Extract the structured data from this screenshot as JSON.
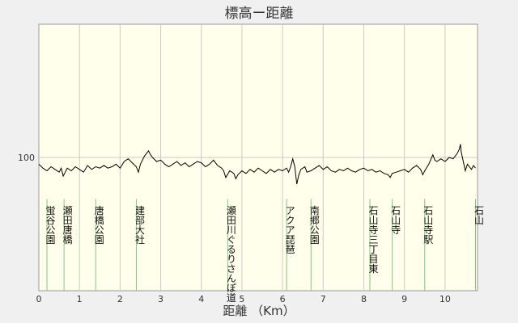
{
  "chart_data": {
    "type": "line",
    "title": "標高ー距離",
    "xlabel": "距離 （Km）",
    "ylabel": "",
    "xlim": [
      0,
      10.8
    ],
    "ylim": [
      0,
      200
    ],
    "x_ticks": [
      0,
      1,
      2,
      3,
      4,
      5,
      6,
      7,
      8,
      9,
      10
    ],
    "y_ticks": [
      100
    ],
    "grid": true,
    "series": [
      {
        "color": "#000000",
        "points": [
          [
            0.0,
            95
          ],
          [
            0.1,
            92
          ],
          [
            0.2,
            90
          ],
          [
            0.3,
            93
          ],
          [
            0.4,
            91
          ],
          [
            0.5,
            89
          ],
          [
            0.55,
            92
          ],
          [
            0.6,
            86
          ],
          [
            0.65,
            89
          ],
          [
            0.7,
            92
          ],
          [
            0.8,
            90
          ],
          [
            0.9,
            93
          ],
          [
            1.0,
            91
          ],
          [
            1.1,
            89
          ],
          [
            1.2,
            94
          ],
          [
            1.3,
            91
          ],
          [
            1.4,
            93
          ],
          [
            1.5,
            92
          ],
          [
            1.6,
            94
          ],
          [
            1.7,
            92
          ],
          [
            1.8,
            93
          ],
          [
            1.9,
            95
          ],
          [
            2.0,
            92
          ],
          [
            2.1,
            97
          ],
          [
            2.2,
            99
          ],
          [
            2.3,
            96
          ],
          [
            2.4,
            93
          ],
          [
            2.45,
            89
          ],
          [
            2.5,
            95
          ],
          [
            2.6,
            101
          ],
          [
            2.7,
            105
          ],
          [
            2.75,
            102
          ],
          [
            2.8,
            100
          ],
          [
            2.9,
            97
          ],
          [
            3.0,
            98
          ],
          [
            3.1,
            95
          ],
          [
            3.2,
            93
          ],
          [
            3.3,
            95
          ],
          [
            3.4,
            97
          ],
          [
            3.5,
            94
          ],
          [
            3.6,
            96
          ],
          [
            3.7,
            93
          ],
          [
            3.8,
            95
          ],
          [
            3.9,
            97
          ],
          [
            4.0,
            96
          ],
          [
            4.1,
            93
          ],
          [
            4.2,
            95
          ],
          [
            4.3,
            98
          ],
          [
            4.4,
            94
          ],
          [
            4.5,
            92
          ],
          [
            4.55,
            90
          ],
          [
            4.6,
            85
          ],
          [
            4.7,
            90
          ],
          [
            4.8,
            88
          ],
          [
            4.85,
            84
          ],
          [
            4.9,
            87
          ],
          [
            5.0,
            90
          ],
          [
            5.1,
            88
          ],
          [
            5.2,
            91
          ],
          [
            5.3,
            89
          ],
          [
            5.4,
            92
          ],
          [
            5.5,
            90
          ],
          [
            5.6,
            88
          ],
          [
            5.7,
            91
          ],
          [
            5.8,
            89
          ],
          [
            5.9,
            91
          ],
          [
            6.0,
            90
          ],
          [
            6.1,
            92
          ],
          [
            6.15,
            89
          ],
          [
            6.2,
            93
          ],
          [
            6.25,
            99
          ],
          [
            6.3,
            93
          ],
          [
            6.35,
            80
          ],
          [
            6.4,
            87
          ],
          [
            6.45,
            91
          ],
          [
            6.55,
            93
          ],
          [
            6.6,
            89
          ],
          [
            6.7,
            90
          ],
          [
            6.8,
            92
          ],
          [
            6.9,
            94
          ],
          [
            7.0,
            91
          ],
          [
            7.1,
            93
          ],
          [
            7.2,
            90
          ],
          [
            7.3,
            89
          ],
          [
            7.4,
            91
          ],
          [
            7.5,
            90
          ],
          [
            7.6,
            92
          ],
          [
            7.7,
            90
          ],
          [
            7.8,
            89
          ],
          [
            7.9,
            91
          ],
          [
            8.0,
            92
          ],
          [
            8.1,
            90
          ],
          [
            8.2,
            91
          ],
          [
            8.3,
            89
          ],
          [
            8.4,
            90
          ],
          [
            8.5,
            88
          ],
          [
            8.6,
            87
          ],
          [
            8.65,
            85
          ],
          [
            8.7,
            88
          ],
          [
            8.8,
            89
          ],
          [
            8.9,
            90
          ],
          [
            9.0,
            91
          ],
          [
            9.1,
            89
          ],
          [
            9.2,
            92
          ],
          [
            9.3,
            94
          ],
          [
            9.4,
            91
          ],
          [
            9.45,
            87
          ],
          [
            9.5,
            90
          ],
          [
            9.6,
            95
          ],
          [
            9.7,
            102
          ],
          [
            9.75,
            98
          ],
          [
            9.8,
            97
          ],
          [
            9.9,
            99
          ],
          [
            10.0,
            97
          ],
          [
            10.1,
            100
          ],
          [
            10.2,
            99
          ],
          [
            10.3,
            103
          ],
          [
            10.35,
            106
          ],
          [
            10.38,
            110
          ],
          [
            10.4,
            104
          ],
          [
            10.45,
            97
          ],
          [
            10.5,
            90
          ],
          [
            10.55,
            95
          ],
          [
            10.6,
            93
          ],
          [
            10.65,
            91
          ],
          [
            10.7,
            94
          ],
          [
            10.75,
            92
          ]
        ]
      }
    ],
    "annotations": [
      {
        "x": 0.2,
        "text": "蛍谷公園"
      },
      {
        "x": 0.62,
        "text": "瀬田唐橋"
      },
      {
        "x": 1.4,
        "text": "唐橋公園"
      },
      {
        "x": 2.4,
        "text": "建部大社"
      },
      {
        "x": 4.65,
        "text": "瀬田川ぐるりさんぽ道"
      },
      {
        "x": 6.1,
        "text": "アクア琵琶"
      },
      {
        "x": 6.7,
        "text": "南郷公園"
      },
      {
        "x": 8.15,
        "text": "石山寺三丁目東"
      },
      {
        "x": 8.7,
        "text": "石山寺"
      },
      {
        "x": 9.5,
        "text": "石山寺駅"
      },
      {
        "x": 10.75,
        "text": "石山"
      }
    ]
  }
}
